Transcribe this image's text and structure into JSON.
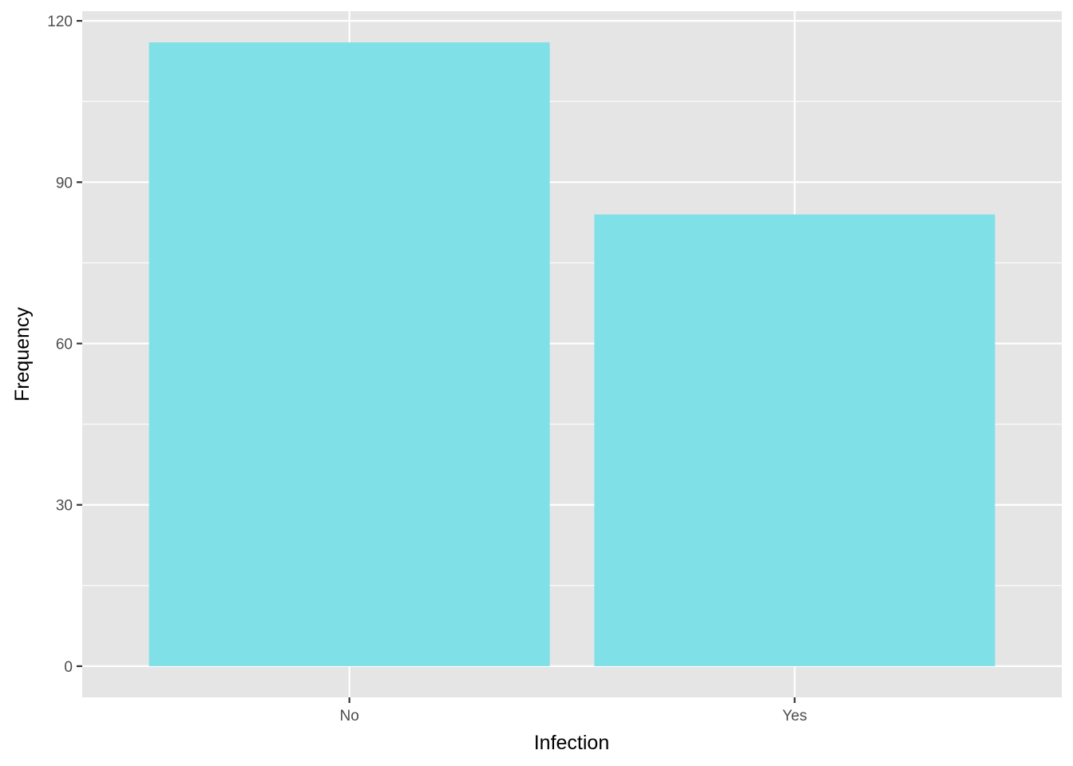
{
  "chart_data": {
    "type": "bar",
    "title": "",
    "xlabel": "Infection",
    "ylabel": "Frequency",
    "categories": [
      "No",
      "Yes"
    ],
    "values": [
      116,
      84
    ],
    "ylim": [
      -5.8,
      121.8
    ],
    "yticks": [
      0,
      30,
      60,
      90,
      120
    ],
    "grid": true,
    "legend": "none",
    "colors": {
      "bar": "#80e0e8",
      "panel": "#e5e5e5",
      "grid": "#ffffff"
    }
  }
}
